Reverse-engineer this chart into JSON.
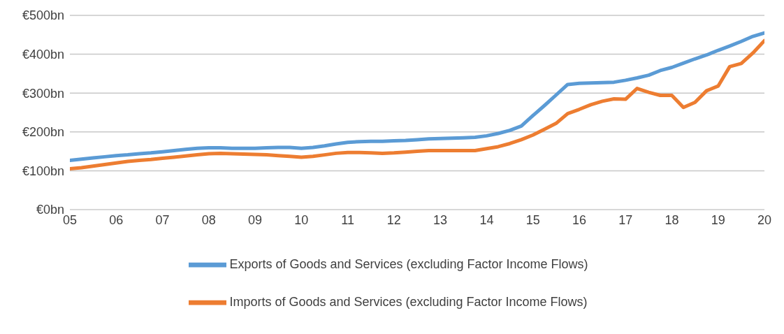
{
  "chart_data": {
    "type": "line",
    "x": [
      2005,
      2005.25,
      2005.5,
      2005.75,
      2006,
      2006.25,
      2006.5,
      2006.75,
      2007,
      2007.25,
      2007.5,
      2007.75,
      2008,
      2008.25,
      2008.5,
      2008.75,
      2009,
      2009.25,
      2009.5,
      2009.75,
      2010,
      2010.25,
      2010.5,
      2010.75,
      2011,
      2011.25,
      2011.5,
      2011.75,
      2012,
      2012.25,
      2012.5,
      2012.75,
      2013,
      2013.25,
      2013.5,
      2013.75,
      2014,
      2014.25,
      2014.5,
      2014.75,
      2015,
      2015.25,
      2015.5,
      2015.75,
      2016,
      2016.25,
      2016.5,
      2016.75,
      2017,
      2017.25,
      2017.5,
      2017.75,
      2018,
      2018.25,
      2018.5,
      2018.75,
      2019,
      2019.25,
      2019.5,
      2019.75,
      2020
    ],
    "series": [
      {
        "name": "Exports of Goods and Services (excluding Factor Income Flows)",
        "color": "#5b9bd5",
        "values": [
          127,
          130,
          133,
          136,
          139,
          141,
          144,
          146,
          149,
          152,
          155,
          158,
          159,
          159,
          158,
          158,
          158,
          159,
          160,
          160,
          158,
          160,
          164,
          169,
          173,
          175,
          176,
          176,
          177,
          178,
          180,
          182,
          183,
          184,
          185,
          186,
          190,
          196,
          204,
          215,
          242,
          268,
          295,
          322,
          325,
          326,
          327,
          328,
          333,
          339,
          346,
          358,
          366,
          377,
          388,
          398,
          410,
          421,
          433,
          446,
          455
        ]
      },
      {
        "name": "Imports of Goods and Services (excluding Factor Income Flows)",
        "color": "#ed7d31",
        "values": [
          105,
          108,
          112,
          116,
          120,
          124,
          127,
          129,
          132,
          135,
          138,
          141,
          144,
          145,
          144,
          143,
          142,
          141,
          139,
          137,
          135,
          137,
          141,
          145,
          147,
          147,
          146,
          145,
          146,
          148,
          150,
          152,
          152,
          152,
          152,
          152,
          157,
          162,
          170,
          180,
          192,
          207,
          222,
          247,
          258,
          270,
          279,
          285,
          284,
          312,
          302,
          294,
          294,
          263,
          276,
          306,
          318,
          368,
          376,
          403,
          435
        ]
      }
    ],
    "xlim": [
      2005,
      2020
    ],
    "xticks": [
      {
        "value": 2005,
        "label": "05"
      },
      {
        "value": 2006,
        "label": "06"
      },
      {
        "value": 2007,
        "label": "07"
      },
      {
        "value": 2008,
        "label": "08"
      },
      {
        "value": 2009,
        "label": "09"
      },
      {
        "value": 2010,
        "label": "10"
      },
      {
        "value": 2011,
        "label": "11"
      },
      {
        "value": 2012,
        "label": "12"
      },
      {
        "value": 2013,
        "label": "13"
      },
      {
        "value": 2014,
        "label": "14"
      },
      {
        "value": 2015,
        "label": "15"
      },
      {
        "value": 2016,
        "label": "16"
      },
      {
        "value": 2017,
        "label": "17"
      },
      {
        "value": 2018,
        "label": "18"
      },
      {
        "value": 2019,
        "label": "19"
      },
      {
        "value": 2020,
        "label": "20"
      }
    ],
    "ylim": [
      0,
      500
    ],
    "yticks": [
      {
        "value": 0,
        "label": "€0bn"
      },
      {
        "value": 100,
        "label": "€100bn"
      },
      {
        "value": 200,
        "label": "€200bn"
      },
      {
        "value": 300,
        "label": "€300bn"
      },
      {
        "value": 400,
        "label": "€400bn"
      },
      {
        "value": 500,
        "label": "€500bn"
      }
    ],
    "grid": "y",
    "legend": "bottom",
    "marker": "none",
    "line_style": "solid"
  }
}
